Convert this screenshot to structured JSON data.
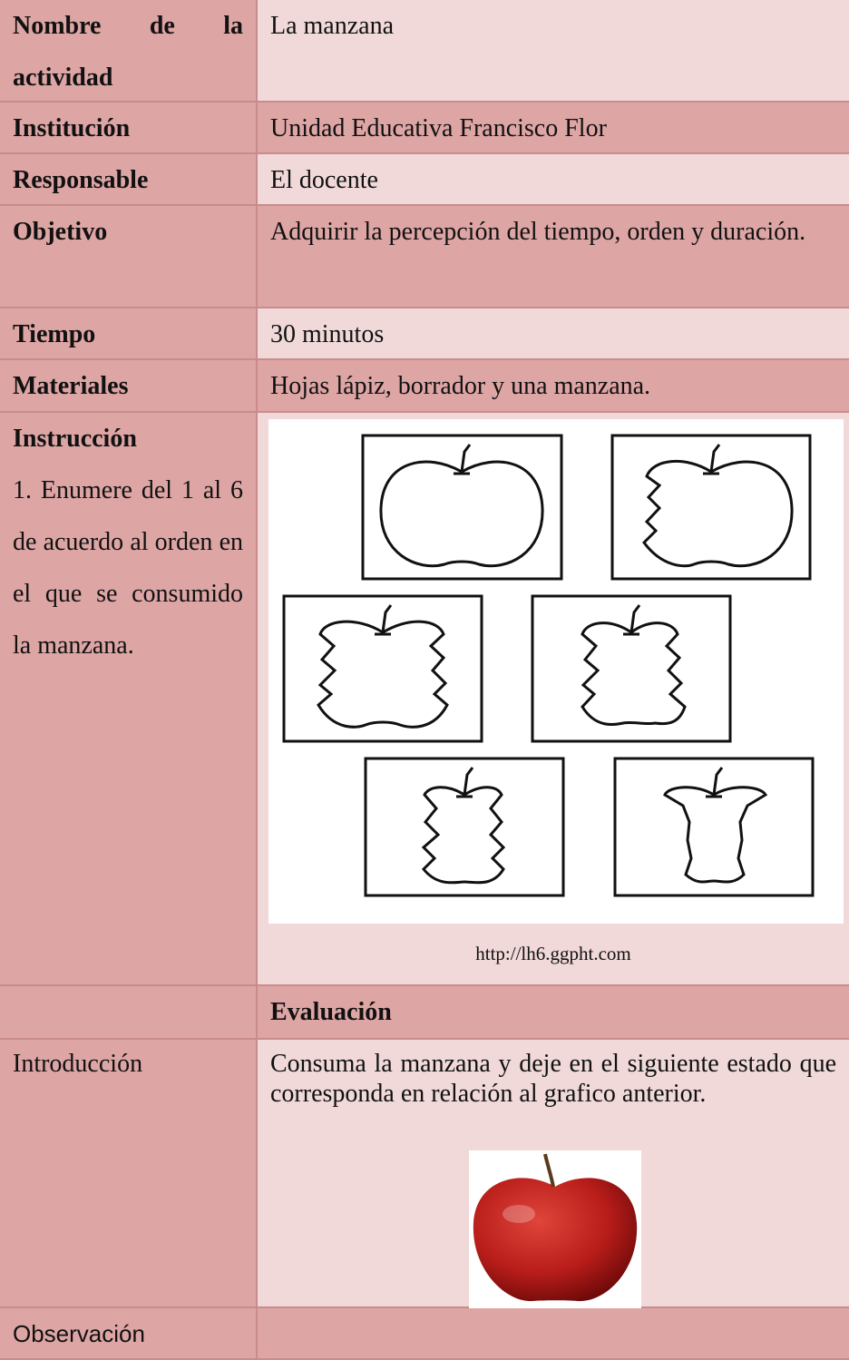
{
  "table": {
    "rows": [
      [
        "Nombre de la actividad",
        "La manzana"
      ],
      [
        "Institución",
        "Unidad Educativa Francisco Flor"
      ],
      [
        "Responsable",
        "El docente"
      ],
      [
        "Objetivo",
        "Adquirir la percepción del tiempo, orden y duración."
      ],
      [
        "Tiempo",
        "30 minutos"
      ],
      [
        "Materiales",
        "Hojas lápiz, borrador y una manzana."
      ]
    ]
  },
  "instruction": {
    "label": "Instrucción",
    "step": "1. Enumere del 1 al 6 de acuerdo al orden en el que se consumido la manzana.",
    "caption": "http://lh6.ggpht.com"
  },
  "evaluation": {
    "heading": "Evaluación",
    "rows": [
      {
        "label": "Introducción",
        "text": "Consuma la manzana y deje en el siguiente estado que corresponda en relación al grafico anterior."
      },
      {
        "label": "Observación"
      }
    ]
  }
}
